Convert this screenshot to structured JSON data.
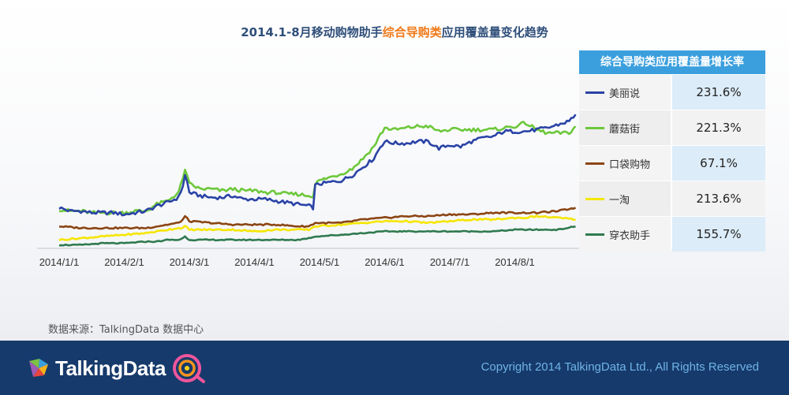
{
  "title": {
    "prefix": "2014.1-8月移动购物助手",
    "highlight": "综合导购类",
    "suffix": "应用覆盖量变化趋势",
    "highlight_color": "#f07a1a"
  },
  "chart_data": {
    "type": "line",
    "title": "2014.1-8月移动购物助手综合导购类应用覆盖量变化趋势",
    "xlabel": "",
    "ylabel": "",
    "grid": false,
    "x_ticks": [
      "2014/1/1",
      "2014/2/1",
      "2014/3/1",
      "2014/4/1",
      "2014/5/1",
      "2014/6/1",
      "2014/7/1",
      "2014/8/1"
    ],
    "x_range": [
      0,
      240
    ],
    "ylim": [
      0,
      100
    ],
    "series": [
      {
        "name": "美丽说",
        "color": "#2a43a6",
        "growth": "231.6%",
        "points": [
          [
            0,
            24
          ],
          [
            5,
            22
          ],
          [
            10,
            22
          ],
          [
            15,
            21
          ],
          [
            20,
            21
          ],
          [
            25,
            21
          ],
          [
            30,
            20
          ],
          [
            35,
            21
          ],
          [
            40,
            22
          ],
          [
            45,
            25
          ],
          [
            50,
            27
          ],
          [
            55,
            30
          ],
          [
            57,
            37
          ],
          [
            58,
            43
          ],
          [
            59,
            39
          ],
          [
            60,
            33
          ],
          [
            65,
            31
          ],
          [
            70,
            30
          ],
          [
            75,
            30
          ],
          [
            80,
            31
          ],
          [
            85,
            29
          ],
          [
            90,
            29
          ],
          [
            95,
            29
          ],
          [
            100,
            28
          ],
          [
            105,
            27
          ],
          [
            110,
            26
          ],
          [
            115,
            25
          ],
          [
            117,
            24
          ],
          [
            118,
            37
          ],
          [
            120,
            38
          ],
          [
            125,
            39
          ],
          [
            130,
            40
          ],
          [
            135,
            43
          ],
          [
            140,
            48
          ],
          [
            145,
            53
          ],
          [
            148,
            60
          ],
          [
            150,
            63
          ],
          [
            155,
            62
          ],
          [
            160,
            62
          ],
          [
            165,
            63
          ],
          [
            170,
            63
          ],
          [
            175,
            59
          ],
          [
            180,
            61
          ],
          [
            185,
            60
          ],
          [
            190,
            63
          ],
          [
            195,
            65
          ],
          [
            200,
            66
          ],
          [
            205,
            69
          ],
          [
            210,
            69
          ],
          [
            215,
            69
          ],
          [
            220,
            70
          ],
          [
            225,
            71
          ],
          [
            230,
            73
          ],
          [
            235,
            75
          ],
          [
            238,
            79
          ]
        ]
      },
      {
        "name": "蘑菇街",
        "color": "#6cc83a",
        "growth": "221.3%",
        "points": [
          [
            0,
            23
          ],
          [
            5,
            22
          ],
          [
            10,
            22
          ],
          [
            15,
            21
          ],
          [
            20,
            21
          ],
          [
            25,
            21
          ],
          [
            30,
            21
          ],
          [
            35,
            22
          ],
          [
            40,
            22
          ],
          [
            45,
            26
          ],
          [
            50,
            28
          ],
          [
            55,
            33
          ],
          [
            57,
            41
          ],
          [
            58,
            47
          ],
          [
            59,
            42
          ],
          [
            60,
            38
          ],
          [
            65,
            35
          ],
          [
            70,
            35
          ],
          [
            75,
            34
          ],
          [
            80,
            35
          ],
          [
            85,
            34
          ],
          [
            90,
            34
          ],
          [
            95,
            33
          ],
          [
            100,
            33
          ],
          [
            105,
            32
          ],
          [
            110,
            32
          ],
          [
            115,
            31
          ],
          [
            117,
            31
          ],
          [
            118,
            38
          ],
          [
            120,
            40
          ],
          [
            125,
            42
          ],
          [
            130,
            44
          ],
          [
            135,
            47
          ],
          [
            140,
            53
          ],
          [
            145,
            60
          ],
          [
            148,
            67
          ],
          [
            150,
            71
          ],
          [
            155,
            70
          ],
          [
            160,
            71
          ],
          [
            165,
            72
          ],
          [
            170,
            72
          ],
          [
            175,
            69
          ],
          [
            180,
            70
          ],
          [
            185,
            70
          ],
          [
            190,
            70
          ],
          [
            195,
            70
          ],
          [
            200,
            70
          ],
          [
            205,
            71
          ],
          [
            210,
            72
          ],
          [
            215,
            74
          ],
          [
            220,
            70
          ],
          [
            225,
            68
          ],
          [
            230,
            68
          ],
          [
            235,
            68
          ],
          [
            238,
            72
          ]
        ]
      },
      {
        "name": "口袋购物",
        "color": "#8b4513",
        "growth": "67.1%",
        "points": [
          [
            0,
            13
          ],
          [
            10,
            12
          ],
          [
            20,
            12
          ],
          [
            30,
            12
          ],
          [
            40,
            12
          ],
          [
            45,
            13
          ],
          [
            50,
            14
          ],
          [
            55,
            15
          ],
          [
            57,
            17
          ],
          [
            58,
            19
          ],
          [
            60,
            16
          ],
          [
            70,
            15
          ],
          [
            80,
            14
          ],
          [
            90,
            14
          ],
          [
            100,
            14
          ],
          [
            110,
            13
          ],
          [
            115,
            13
          ],
          [
            118,
            15
          ],
          [
            130,
            15
          ],
          [
            140,
            17
          ],
          [
            150,
            18
          ],
          [
            160,
            19
          ],
          [
            170,
            19
          ],
          [
            180,
            20
          ],
          [
            190,
            20
          ],
          [
            200,
            21
          ],
          [
            210,
            21
          ],
          [
            220,
            21
          ],
          [
            230,
            22
          ],
          [
            238,
            24
          ]
        ]
      },
      {
        "name": "一淘",
        "color": "#f5e600",
        "growth": "213.6%",
        "points": [
          [
            0,
            5
          ],
          [
            10,
            6
          ],
          [
            20,
            7
          ],
          [
            30,
            8
          ],
          [
            40,
            9
          ],
          [
            45,
            10
          ],
          [
            50,
            11
          ],
          [
            55,
            12
          ],
          [
            57,
            12
          ],
          [
            58,
            13
          ],
          [
            60,
            11
          ],
          [
            70,
            11
          ],
          [
            80,
            11
          ],
          [
            90,
            10
          ],
          [
            100,
            11
          ],
          [
            110,
            11
          ],
          [
            115,
            11
          ],
          [
            118,
            13
          ],
          [
            130,
            14
          ],
          [
            140,
            15
          ],
          [
            150,
            16
          ],
          [
            160,
            16
          ],
          [
            170,
            15
          ],
          [
            180,
            16
          ],
          [
            190,
            17
          ],
          [
            200,
            17
          ],
          [
            210,
            18
          ],
          [
            215,
            18
          ],
          [
            220,
            19
          ],
          [
            230,
            18
          ],
          [
            238,
            17
          ]
        ]
      },
      {
        "name": "穿衣助手",
        "color": "#2f7a4f",
        "growth": "155.7%",
        "points": [
          [
            0,
            2
          ],
          [
            10,
            2
          ],
          [
            20,
            3
          ],
          [
            30,
            3
          ],
          [
            40,
            4
          ],
          [
            45,
            4
          ],
          [
            50,
            5
          ],
          [
            55,
            5
          ],
          [
            57,
            6
          ],
          [
            58,
            7
          ],
          [
            60,
            5
          ],
          [
            70,
            5
          ],
          [
            80,
            5
          ],
          [
            90,
            5
          ],
          [
            100,
            5
          ],
          [
            110,
            5
          ],
          [
            115,
            6
          ],
          [
            118,
            7
          ],
          [
            130,
            8
          ],
          [
            140,
            9
          ],
          [
            150,
            10
          ],
          [
            160,
            10
          ],
          [
            170,
            10
          ],
          [
            180,
            10
          ],
          [
            190,
            10
          ],
          [
            200,
            10
          ],
          [
            210,
            11
          ],
          [
            220,
            11
          ],
          [
            230,
            11
          ],
          [
            238,
            13
          ]
        ]
      }
    ]
  },
  "legend": {
    "header": "综合导购类应用覆盖量增长率",
    "items": [
      {
        "name": "美丽说",
        "value": "231.6%",
        "color": "#2a43a6"
      },
      {
        "name": "蘑菇街",
        "value": "221.3%",
        "color": "#6cc83a"
      },
      {
        "name": "口袋购物",
        "value": "67.1%",
        "color": "#8b4513"
      },
      {
        "name": "一淘",
        "value": "213.6%",
        "color": "#f5e600"
      },
      {
        "name": "穿衣助手",
        "value": "155.7%",
        "color": "#2f7a4f"
      }
    ]
  },
  "source": "数据来源：TalkingData 数据中心",
  "footer": {
    "logo_text": "TalkingData",
    "copyright": "Copyright 2014 TalkingData Ltd., All Rights Reserved"
  }
}
